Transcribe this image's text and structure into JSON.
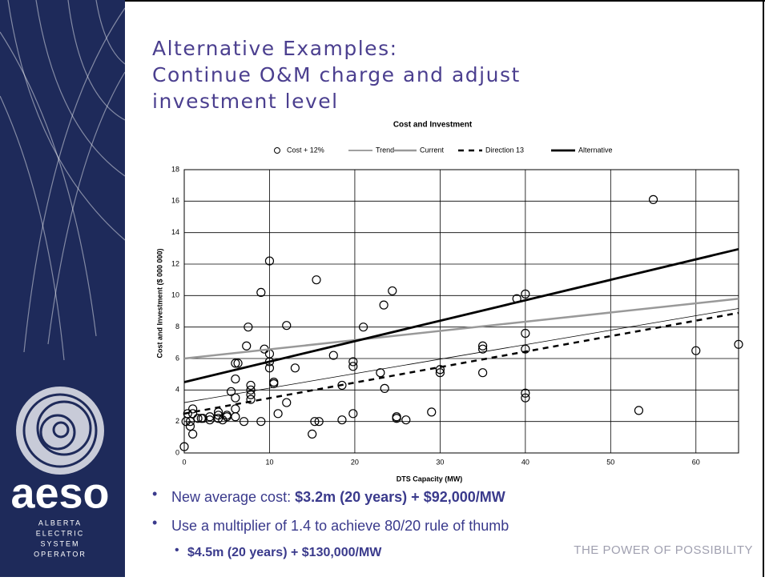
{
  "slide": {
    "title_lines": [
      "Alternative Examples:",
      "Continue O&M charge and adjust",
      "investment level"
    ],
    "logo": {
      "name": "aeso",
      "lines": [
        "ALBERTA",
        "ELECTRIC",
        "SYSTEM",
        "OPERATOR"
      ]
    },
    "bullets": [
      {
        "text": "New average cost: ",
        "bold": "$3.2m (20 years) + $92,000/MW"
      },
      {
        "text": "Use a multiplier of 1.4 to achieve 80/20 rule of thumb",
        "bold": null
      }
    ],
    "sub_bullets": [
      {
        "bold": "$4.5m (20 years) + $130,000/MW"
      }
    ],
    "tagline": "THE POWER OF POSSIBILITY"
  },
  "chart_data": {
    "type": "scatter",
    "title": "Cost and Investment",
    "x_label": "DTS Capacity (MW)",
    "y_label": "Cost and Investment ($ 000 000)",
    "xlim": [
      0,
      65
    ],
    "ylim": [
      0,
      18
    ],
    "xticks": [
      0,
      10,
      20,
      30,
      40,
      50,
      60
    ],
    "yticks": [
      0,
      2,
      4,
      6,
      8,
      10,
      12,
      14,
      16,
      18
    ],
    "grid": true,
    "legend": "top",
    "series": [
      {
        "name": "Cost + 12%",
        "type": "scatter",
        "color": "#000000",
        "x": [
          0,
          0.2,
          0.4,
          0.7,
          0.7,
          1,
          1,
          1,
          1.6,
          2,
          2.2,
          3,
          3,
          4,
          4,
          4,
          4.5,
          5,
          5,
          5.5,
          6,
          6,
          6,
          6,
          6,
          6.3,
          7,
          7.3,
          7.5,
          7.8,
          7.8,
          7.8,
          7.8,
          9,
          9,
          9.4,
          10,
          10,
          10,
          10,
          10.5,
          10.5,
          11,
          12,
          12,
          13,
          15,
          15.3,
          15.8,
          15.5,
          17.5,
          18.5,
          18.5,
          19.8,
          19.8,
          19.8,
          21,
          23,
          23.4,
          23.5,
          24.4,
          24.9,
          24.9,
          26,
          29,
          30,
          30,
          35,
          35,
          35,
          39,
          40,
          40,
          40,
          40,
          40,
          53.3,
          55,
          60,
          65
        ],
        "values": [
          0.4,
          2.0,
          2.5,
          2.0,
          1.7,
          1.2,
          2.8,
          2.5,
          2.2,
          2.2,
          2.2,
          2.3,
          2.1,
          2.4,
          2.2,
          2.6,
          2.1,
          2.3,
          2.4,
          3.9,
          3.5,
          2.8,
          2.3,
          4.7,
          5.7,
          5.7,
          2.0,
          6.8,
          8.0,
          4.3,
          4.0,
          3.7,
          3.4,
          10.2,
          2.0,
          6.6,
          12.2,
          6.3,
          5.8,
          5.4,
          4.5,
          4.4,
          2.5,
          3.2,
          8.1,
          5.4,
          1.2,
          2.0,
          2.0,
          11.0,
          6.2,
          2.1,
          4.3,
          2.5,
          5.8,
          5.5,
          8.0,
          5.1,
          9.4,
          4.1,
          10.3,
          2.3,
          2.2,
          2.1,
          2.6,
          5.3,
          5.1,
          6.8,
          6.6,
          5.1,
          9.8,
          10.1,
          7.6,
          6.6,
          3.8,
          3.5,
          2.7,
          16.1,
          6.5,
          6.9
        ]
      },
      {
        "name": "Trend",
        "type": "line",
        "color": "#000000",
        "x": [
          0,
          65
        ],
        "values": [
          3.2,
          9.18
        ]
      },
      {
        "name": "Current",
        "type": "line",
        "color": "#999999",
        "x": [
          0,
          65
        ],
        "values": [
          6.0,
          9.8
        ]
      },
      {
        "name": "Direction 13",
        "type": "line",
        "color": "#000000",
        "dashed": true,
        "x": [
          0,
          65
        ],
        "values": [
          2.5,
          8.9
        ]
      },
      {
        "name": "Alternative",
        "type": "line",
        "color": "#000000",
        "x": [
          0,
          65
        ],
        "values": [
          4.5,
          12.95
        ]
      }
    ]
  }
}
